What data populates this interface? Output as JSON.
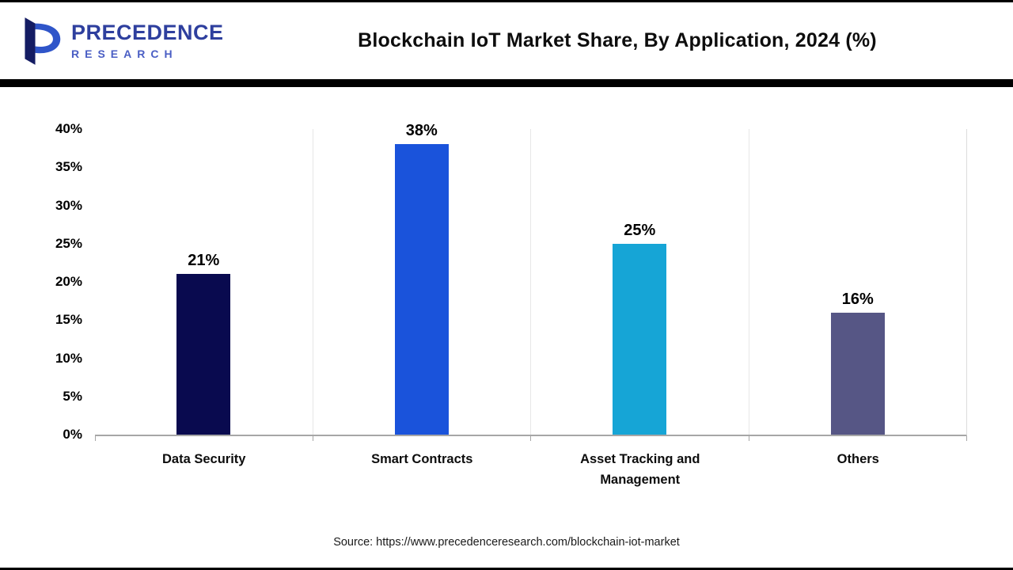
{
  "header": {
    "logo": {
      "line1": "PRECEDENCE",
      "line2": "RESEARCH"
    },
    "title": "Blockchain IoT Market Share, By Application, 2024 (%)"
  },
  "chart_data": {
    "type": "bar",
    "title": "Blockchain IoT Market Share, By Application, 2024 (%)",
    "categories": [
      "Data Security",
      "Smart Contracts",
      "Asset Tracking and Management",
      "Others"
    ],
    "values": [
      21,
      38,
      25,
      16
    ],
    "value_labels": [
      "21%",
      "38%",
      "25%",
      "16%"
    ],
    "bar_colors": [
      "#090a4f",
      "#1a53db",
      "#16a5d6",
      "#565685"
    ],
    "xlabel": "",
    "ylabel": "",
    "ylim": [
      0,
      40
    ],
    "yticks": [
      0,
      5,
      10,
      15,
      20,
      25,
      30,
      35,
      40
    ],
    "ytick_labels": [
      "0%",
      "5%",
      "10%",
      "15%",
      "20%",
      "25%",
      "30%",
      "35%",
      "40%"
    ],
    "grid": "none",
    "legend": "none",
    "axis_line_color": "#a6a6a6"
  },
  "footer": {
    "source": "Source: https://www.precedenceresearch.com/blockchain-iot-market"
  }
}
